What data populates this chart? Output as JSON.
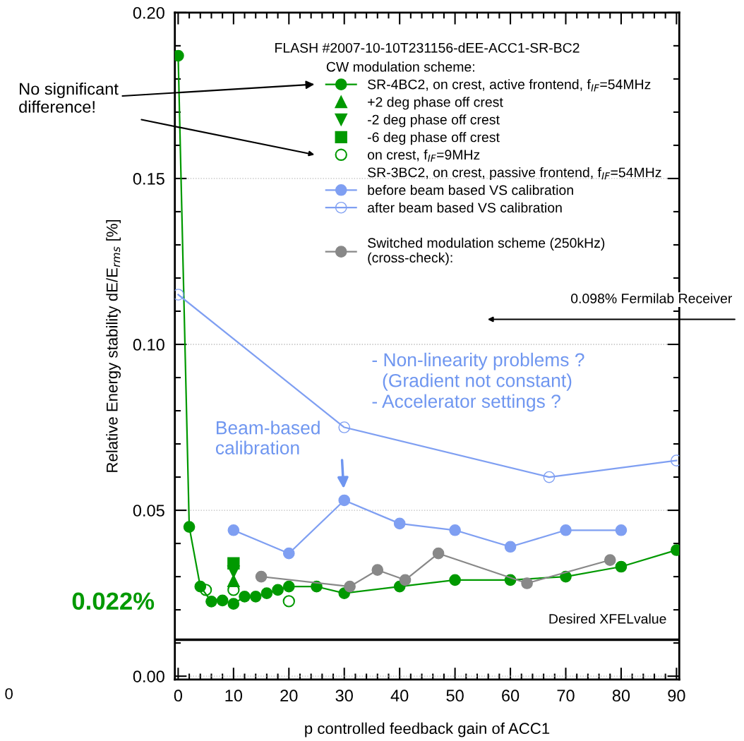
{
  "chart_data": {
    "type": "line",
    "title": "FLASH #2007-10-10T231156-dEE-ACC1-SR-BC2",
    "xlabel": "p controlled feedback gain of ACC1",
    "ylabel": "Relative Energy stability dE/E$_{rms}$ [%]",
    "legend_title": "CW modulation scheme:",
    "xlim": [
      -0.6,
      90.5
    ],
    "xticks": [
      0,
      10,
      20,
      30,
      40,
      50,
      60,
      70,
      80,
      90
    ],
    "ylim": [
      -0.001,
      0.2
    ],
    "yticks": [
      {
        "value": 0,
        "label": "0.00"
      },
      {
        "value": 0.05,
        "label": "0.05"
      },
      {
        "value": 0.1,
        "label": "0.10"
      },
      {
        "value": 0.15,
        "label": "0.15"
      },
      {
        "value": 0.2,
        "label": "0.20"
      }
    ],
    "grid": "y",
    "legend": "top right",
    "line_style": "solid",
    "series": [
      {
        "name": "SR-4BC2, on crest, active frontend, f$_{IF}$=54MHz",
        "color": "#009900",
        "marker": "circle",
        "x": [
          0,
          2,
          4,
          6,
          8,
          10,
          12,
          14,
          16,
          18,
          20,
          25,
          30,
          40,
          50,
          60,
          70,
          80,
          90
        ],
        "values": [
          0.187,
          0.045,
          0.027,
          0.0225,
          0.0228,
          0.0218,
          0.024,
          0.024,
          0.025,
          0.026,
          0.027,
          0.027,
          0.025,
          0.027,
          0.029,
          0.029,
          0.03,
          0.033,
          0.038
        ]
      },
      {
        "name": "+2 deg phase off crest",
        "type": "scatter",
        "color": "#009900",
        "marker": "triangle",
        "x": [
          10
        ],
        "values": [
          0.0287
        ]
      },
      {
        "name": "-2 deg phase off crest",
        "type": "scatter",
        "color": "#009900",
        "marker": "triangle_down",
        "x": [
          10
        ],
        "values": [
          0.0315
        ]
      },
      {
        "name": "-6 deg phase off crest",
        "type": "scatter",
        "color": "#009900",
        "marker": "square",
        "x": [
          10
        ],
        "values": [
          0.034
        ]
      },
      {
        "name": "on crest, f$_{IF}$=9MHz",
        "type": "scatter",
        "color": "#009900",
        "marker": "open circle",
        "x": [
          5,
          10,
          20
        ],
        "values": [
          0.026,
          0.026,
          0.0226
        ]
      },
      {
        "name": "before beam based VS calibration",
        "color": "#7f9ff2",
        "marker": "circle",
        "x": [
          10,
          20,
          30,
          40,
          50,
          60,
          70,
          80
        ],
        "values": [
          0.044,
          0.037,
          0.053,
          0.046,
          0.044,
          0.039,
          0.044,
          0.044
        ]
      },
      {
        "name": "after beam based VS calibration",
        "color": "#7f9ff2",
        "marker": "open circle",
        "x": [
          0,
          30,
          67,
          90
        ],
        "values": [
          0.115,
          0.075,
          0.06,
          0.065
        ]
      },
      {
        "name": "Switched modulation scheme (250kHz)\n(cross-check):",
        "color": "#888888",
        "marker": "circle",
        "x": [
          15,
          31,
          36,
          41,
          47,
          63,
          78
        ],
        "values": [
          0.03,
          0.027,
          0.032,
          0.029,
          0.037,
          0.028,
          0.035
        ]
      }
    ],
    "ref_lines": [
      {
        "axis": "y",
        "value": 0.011,
        "label": "Desired XFELvalue",
        "color": "#000000"
      }
    ],
    "annotations": [
      "SR-3BC2, on crest, passive frontend, f$_{IF}$=54MHz",
      "No significant\ndifference!",
      "0.098% Fermilab Receiver",
      "- Non-linearity problems ?\n  (Gradient not constant)\n- Accelerator settings ?",
      {
        "text": "Beam-based\ncalibration",
        "x": 30,
        "y": 0.053
      },
      "0.022%",
      "0"
    ]
  }
}
